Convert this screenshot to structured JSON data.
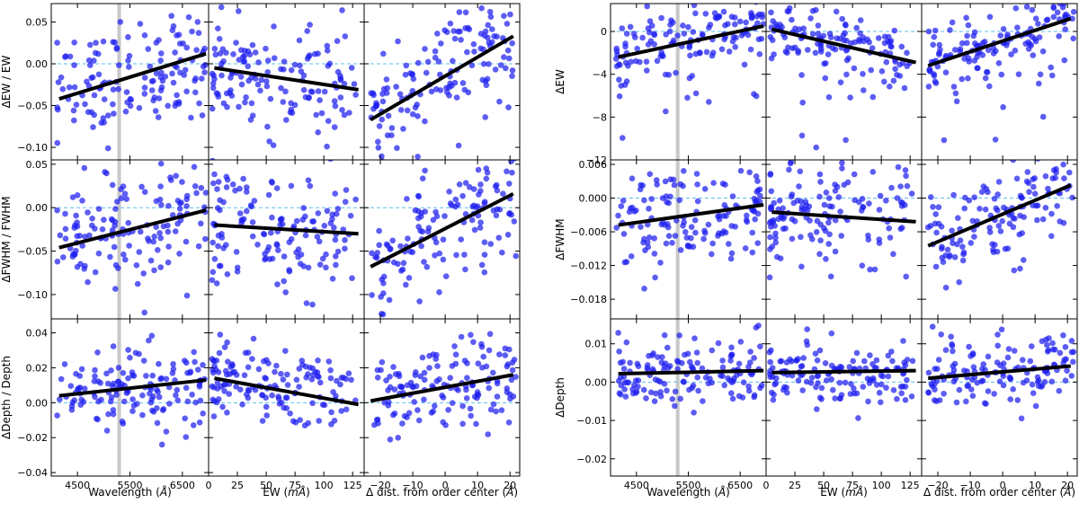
{
  "figure": {
    "panel_groups": [
      {
        "id": "left",
        "row_ylabels": [
          "ΔEW / EW",
          "ΔFWHM / FWHM",
          "ΔDepth / Depth"
        ],
        "col_xlabels": [
          "Wavelength (Å)",
          "EW (mÅ)",
          "Δ dist. from order center (Å)"
        ],
        "col_xlabel_parts": [
          [
            "Wavelength (",
            "Å",
            ")"
          ],
          [
            "EW (",
            "mÅ",
            ")"
          ],
          [
            "Δ dist. from order center (",
            "Å",
            ")"
          ]
        ],
        "col_xlim": [
          [
            4000,
            7000
          ],
          [
            0,
            135
          ],
          [
            -25,
            23
          ]
        ],
        "col_xticks": [
          [
            4500,
            5500,
            6500
          ],
          [
            0,
            25,
            50,
            75,
            100,
            125
          ],
          [
            -20,
            -10,
            0,
            10,
            20
          ]
        ],
        "row_ylim": [
          [
            -0.115,
            0.072
          ],
          [
            -0.128,
            0.055
          ],
          [
            -0.042,
            0.048
          ]
        ],
        "row_yticks": [
          {
            "values": [
              -0.1,
              -0.05,
              0.0,
              0.05
            ],
            "labels": [
              "−0.10",
              "−0.05",
              "0.00",
              "0.05"
            ]
          },
          {
            "values": [
              -0.1,
              -0.05,
              0.0,
              0.05
            ],
            "labels": [
              "−0.10",
              "−0.05",
              "0.00",
              "0.05"
            ]
          },
          {
            "values": [
              -0.04,
              -0.02,
              0.0,
              0.02,
              0.04
            ],
            "labels": [
              "−0.04",
              "−0.02",
              "0.00",
              "0.02",
              "0.04"
            ]
          }
        ],
        "gray_band_wavelength": [
          5260,
          5330
        ],
        "fits": [
          [
            [
              4150,
              -0.042,
              6950,
              0.012
            ],
            [
              5,
              -0.005,
              130,
              -0.031
            ],
            [
              -23,
              -0.067,
              21,
              0.033
            ]
          ],
          [
            [
              4150,
              -0.046,
              6950,
              -0.003
            ],
            [
              5,
              -0.02,
              130,
              -0.03
            ],
            [
              -23,
              -0.068,
              21,
              0.016
            ]
          ],
          [
            [
              4150,
              0.004,
              6950,
              0.013
            ],
            [
              5,
              0.014,
              130,
              -0.001
            ],
            [
              -23,
              0.001,
              21,
              0.016
            ]
          ]
        ]
      },
      {
        "id": "right",
        "row_ylabels": [
          "ΔEW",
          "ΔFWHM",
          "ΔDepth"
        ],
        "col_xlabels": [
          "Wavelength (Å)",
          "EW (mÅ)",
          "Δ dist. from order center (Å)"
        ],
        "col_xlabel_parts": [
          [
            "Wavelength (",
            "Å",
            ")"
          ],
          [
            "EW (",
            "mÅ",
            ")"
          ],
          [
            "Δ dist. from order center (",
            "Å",
            ")"
          ]
        ],
        "col_xlim": [
          [
            4000,
            7000
          ],
          [
            0,
            135
          ],
          [
            -25,
            23
          ]
        ],
        "col_xticks": [
          [
            4500,
            5500,
            6500
          ],
          [
            0,
            25,
            50,
            75,
            100,
            125
          ],
          [
            -20,
            -10,
            0,
            10,
            20
          ]
        ],
        "row_ylim": [
          [
            -12,
            2.6
          ],
          [
            -0.0215,
            0.0068
          ],
          [
            -0.0245,
            0.0165
          ]
        ],
        "row_yticks": [
          {
            "values": [
              -12,
              -8,
              -4,
              0
            ],
            "labels": [
              "−12",
              "−8",
              "−4",
              "0"
            ]
          },
          {
            "values": [
              -0.018,
              -0.012,
              -0.006,
              0.0,
              0.006
            ],
            "labels": [
              "−0.018",
              "−0.012",
              "−0.006",
              "0.000",
              "0.006"
            ]
          },
          {
            "values": [
              -0.02,
              -0.01,
              0.0,
              0.01
            ],
            "labels": [
              "−0.02",
              "−0.01",
              "0.00",
              "0.01"
            ]
          }
        ],
        "gray_band_wavelength": [
          5260,
          5330
        ],
        "fits": [
          [
            [
              4150,
              -2.4,
              6950,
              0.5
            ],
            [
              5,
              0.2,
              130,
              -2.9
            ],
            [
              -23,
              -3.2,
              21,
              1.2
            ]
          ],
          [
            [
              4150,
              -0.0048,
              6950,
              -0.0012
            ],
            [
              5,
              -0.0025,
              130,
              -0.0042
            ],
            [
              -23,
              -0.0085,
              21,
              0.0023
            ]
          ],
          [
            [
              4150,
              0.0022,
              6950,
              0.003
            ],
            [
              5,
              0.0025,
              130,
              0.003
            ],
            [
              -23,
              0.001,
              21,
              0.0042
            ]
          ]
        ]
      }
    ]
  },
  "chart_data": {
    "type": "scatter",
    "description_of_points": "About 150 spectral lines per panel; blue points scattered around each black linear fit line. Dashed light-blue horizontal line marks y = 0.",
    "n_points_per_panel": 140,
    "point_scatter_sigma_per_row": {
      "left": [
        0.032,
        0.035,
        0.012
      ],
      "right": [
        1.6,
        0.0045,
        0.0045
      ]
    },
    "zero_line_y": 0,
    "colors": {
      "points": "#1f1ff0",
      "fit": "#000000",
      "zero_line": "#5bc0e8",
      "band": "#c8c8c8"
    }
  }
}
